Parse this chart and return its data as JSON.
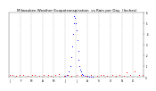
{
  "title": "Milwaukee Weather Evapotranspiration  vs Rain per Day  (Inches)",
  "title_fontsize": 3.0,
  "background_color": "#ffffff",
  "plot_bg_color": "#ffffff",
  "grid_color": "#aaaaaa",
  "text_color": "#000000",
  "ylim": [
    0,
    0.6
  ],
  "xlim": [
    0,
    364
  ],
  "ylabel_right_labels": [
    ".6",
    ".5",
    ".4",
    ".3",
    ".2",
    ".1",
    "0"
  ],
  "ylabel_right_values": [
    0.6,
    0.5,
    0.4,
    0.3,
    0.2,
    0.1,
    0.0
  ],
  "et_color": "#0000ff",
  "rain_color": "#ff0000",
  "et_x": [
    150,
    155,
    160,
    165,
    168,
    170,
    172,
    174,
    176,
    178,
    180,
    182,
    184,
    186,
    188,
    190,
    192,
    194,
    196,
    198,
    200,
    205,
    210,
    215,
    220,
    225
  ],
  "et_y": [
    0.01,
    0.02,
    0.05,
    0.1,
    0.18,
    0.28,
    0.4,
    0.5,
    0.56,
    0.55,
    0.5,
    0.43,
    0.34,
    0.24,
    0.16,
    0.1,
    0.07,
    0.05,
    0.03,
    0.02,
    0.015,
    0.01,
    0.01,
    0.005,
    0.003,
    0.002
  ],
  "rain_x": [
    2,
    8,
    18,
    28,
    38,
    50,
    62,
    68,
    80,
    92,
    104,
    112,
    125,
    135,
    148,
    158,
    168,
    182,
    195,
    208,
    222,
    238,
    248,
    255,
    265,
    278,
    288,
    298,
    310,
    318,
    328,
    340,
    352,
    360
  ],
  "rain_y": [
    0.02,
    0.015,
    0.01,
    0.02,
    0.015,
    0.01,
    0.02,
    0.015,
    0.01,
    0.015,
    0.02,
    0.01,
    0.015,
    0.025,
    0.01,
    0.02,
    0.01,
    0.02,
    0.015,
    0.01,
    0.02,
    0.01,
    0.015,
    0.02,
    0.01,
    0.015,
    0.01,
    0.015,
    0.01,
    0.04,
    0.02,
    0.05,
    0.015,
    0.02
  ],
  "vgrid_x": [
    0,
    31,
    59,
    90,
    120,
    151,
    181,
    212,
    243,
    273,
    304,
    334,
    364
  ],
  "xtick_labels": [
    "J",
    "",
    "F",
    "",
    "M",
    "",
    "A",
    "",
    "M",
    "",
    "J",
    "",
    "J",
    "",
    "A",
    "",
    "S",
    "",
    "O",
    "",
    "N",
    "",
    "D",
    ""
  ],
  "xtick_positions": [
    0,
    15,
    31,
    45,
    59,
    75,
    90,
    106,
    120,
    136,
    151,
    167,
    181,
    197,
    212,
    228,
    243,
    259,
    273,
    289,
    304,
    319,
    334,
    349
  ]
}
